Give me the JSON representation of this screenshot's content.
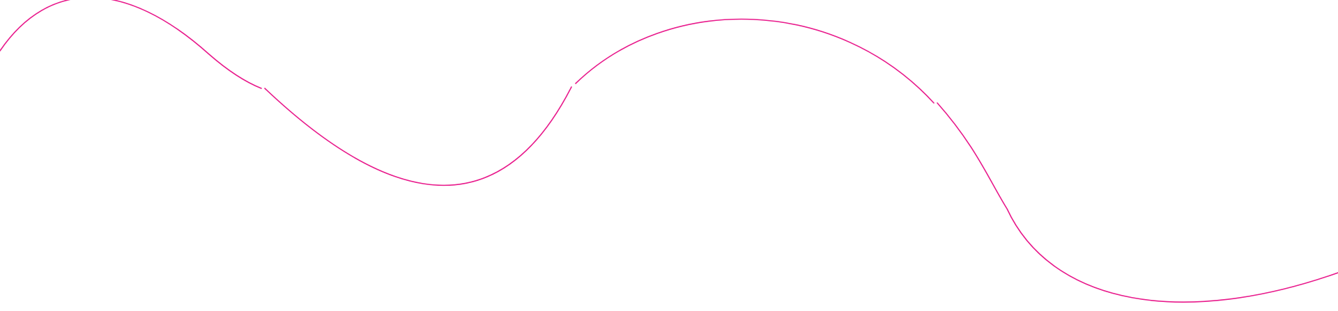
{
  "decoration": {
    "type": "wavy-line",
    "stroke_color": "#e8178a",
    "background_color": "#ffffff"
  }
}
